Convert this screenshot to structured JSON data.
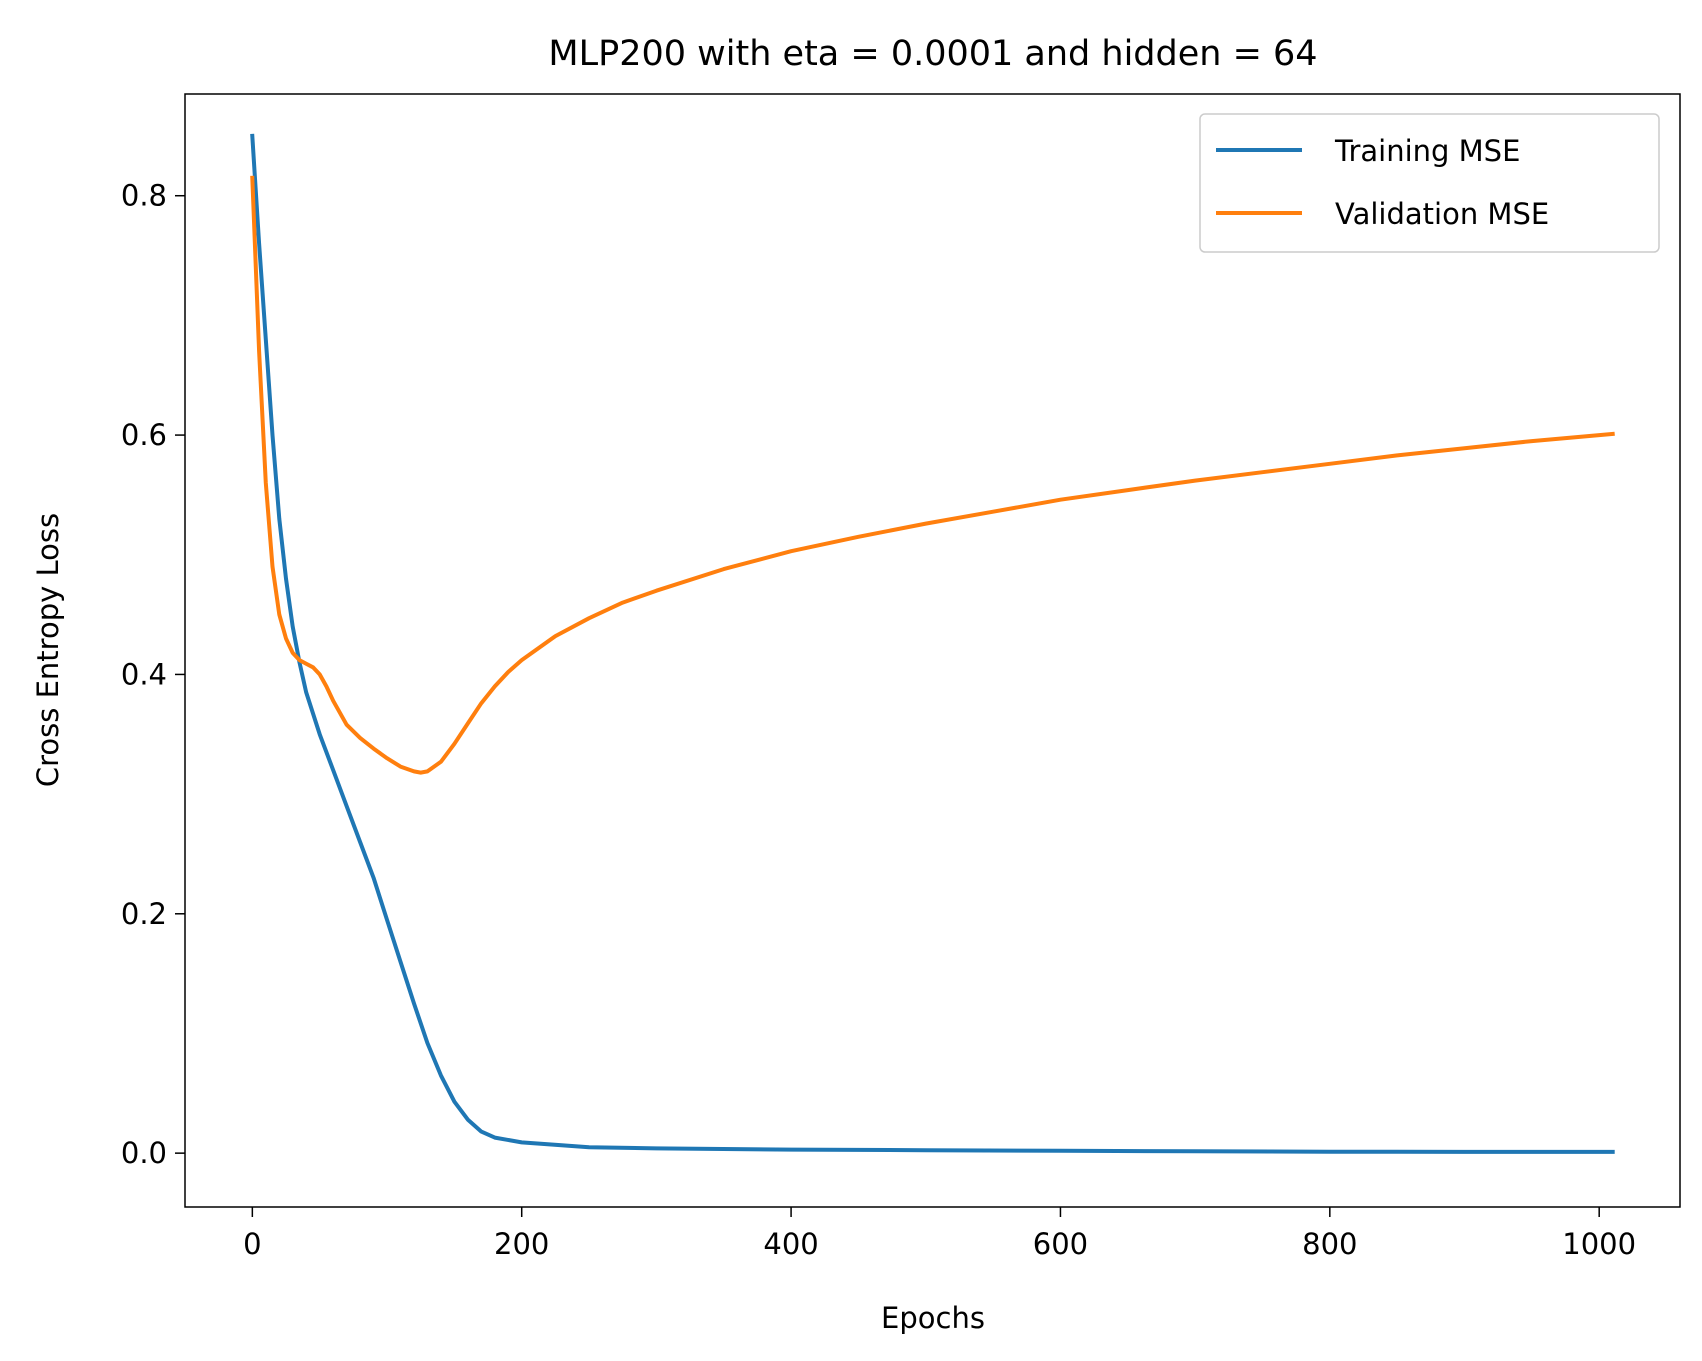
{
  "chart_data": {
    "type": "line",
    "title": "MLP200 with eta = 0.0001 and hidden = 64",
    "xlabel": "Epochs",
    "ylabel": "Cross Entropy Loss",
    "xlim": [
      -50,
      1060
    ],
    "ylim": [
      -0.045,
      0.885
    ],
    "xticks": [
      0,
      200,
      400,
      600,
      800,
      1000
    ],
    "xtick_labels": [
      "0",
      "200",
      "400",
      "600",
      "800",
      "1000"
    ],
    "yticks": [
      0.0,
      0.2,
      0.4,
      0.6,
      0.8
    ],
    "ytick_labels": [
      "0.0",
      "0.2",
      "0.4",
      "0.6",
      "0.8"
    ],
    "grid": false,
    "legend_position": "top-right",
    "series": [
      {
        "name": "Training MSE",
        "color": "#1f77b4",
        "points": [
          [
            0,
            0.85
          ],
          [
            5,
            0.76
          ],
          [
            10,
            0.68
          ],
          [
            15,
            0.6
          ],
          [
            20,
            0.53
          ],
          [
            25,
            0.48
          ],
          [
            30,
            0.44
          ],
          [
            35,
            0.41
          ],
          [
            40,
            0.385
          ],
          [
            50,
            0.35
          ],
          [
            60,
            0.32
          ],
          [
            70,
            0.29
          ],
          [
            80,
            0.26
          ],
          [
            90,
            0.23
          ],
          [
            100,
            0.195
          ],
          [
            110,
            0.16
          ],
          [
            120,
            0.125
          ],
          [
            130,
            0.092
          ],
          [
            140,
            0.065
          ],
          [
            150,
            0.043
          ],
          [
            160,
            0.028
          ],
          [
            170,
            0.018
          ],
          [
            180,
            0.013
          ],
          [
            200,
            0.009
          ],
          [
            250,
            0.005
          ],
          [
            300,
            0.004
          ],
          [
            400,
            0.003
          ],
          [
            500,
            0.0025
          ],
          [
            600,
            0.002
          ],
          [
            700,
            0.0015
          ],
          [
            800,
            0.0012
          ],
          [
            900,
            0.001
          ],
          [
            1010,
            0.001
          ]
        ]
      },
      {
        "name": "Validation MSE",
        "color": "#ff7f0e",
        "points": [
          [
            0,
            0.815
          ],
          [
            5,
            0.67
          ],
          [
            10,
            0.56
          ],
          [
            15,
            0.49
          ],
          [
            20,
            0.45
          ],
          [
            25,
            0.43
          ],
          [
            30,
            0.418
          ],
          [
            35,
            0.412
          ],
          [
            40,
            0.409
          ],
          [
            45,
            0.406
          ],
          [
            50,
            0.4
          ],
          [
            55,
            0.39
          ],
          [
            60,
            0.378
          ],
          [
            70,
            0.358
          ],
          [
            80,
            0.347
          ],
          [
            90,
            0.338
          ],
          [
            100,
            0.33
          ],
          [
            110,
            0.323
          ],
          [
            120,
            0.319
          ],
          [
            125,
            0.318
          ],
          [
            130,
            0.319
          ],
          [
            140,
            0.327
          ],
          [
            150,
            0.342
          ],
          [
            160,
            0.359
          ],
          [
            170,
            0.376
          ],
          [
            180,
            0.39
          ],
          [
            190,
            0.402
          ],
          [
            200,
            0.412
          ],
          [
            225,
            0.432
          ],
          [
            250,
            0.447
          ],
          [
            275,
            0.46
          ],
          [
            300,
            0.47
          ],
          [
            350,
            0.488
          ],
          [
            400,
            0.503
          ],
          [
            450,
            0.515
          ],
          [
            500,
            0.526
          ],
          [
            550,
            0.536
          ],
          [
            600,
            0.546
          ],
          [
            650,
            0.554
          ],
          [
            700,
            0.562
          ],
          [
            750,
            0.569
          ],
          [
            800,
            0.576
          ],
          [
            850,
            0.583
          ],
          [
            900,
            0.589
          ],
          [
            950,
            0.595
          ],
          [
            1010,
            0.601
          ]
        ]
      }
    ]
  }
}
